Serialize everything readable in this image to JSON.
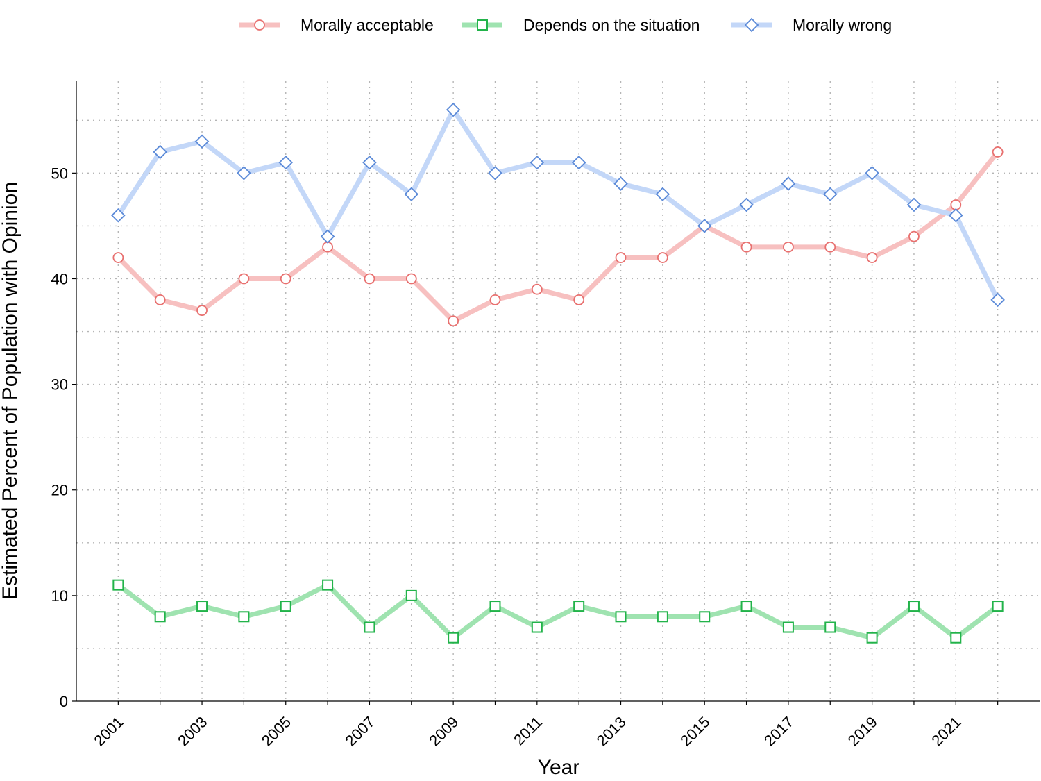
{
  "chart_data": {
    "type": "line",
    "title": "",
    "xlabel": "Year",
    "ylabel": "Estimated Percent of Population with Opinion",
    "x": [
      2001,
      2002,
      2003,
      2004,
      2005,
      2006,
      2007,
      2008,
      2009,
      2010,
      2011,
      2012,
      2013,
      2014,
      2015,
      2016,
      2017,
      2018,
      2019,
      2020,
      2021,
      2022
    ],
    "x_tick_labels": [
      "2001",
      "2003",
      "2005",
      "2007",
      "2009",
      "2011",
      "2013",
      "2015",
      "2017",
      "2019",
      "2021"
    ],
    "y_tick_labels": [
      "0",
      "10",
      "20",
      "30",
      "40",
      "50"
    ],
    "xlim": [
      2000.0,
      2023.0
    ],
    "ylim": [
      0,
      58.7
    ],
    "grid": true,
    "legend_position": "top-center",
    "series": [
      {
        "name": "Morally acceptable",
        "marker": "circle",
        "line_color": "#f7c0c0",
        "marker_color": "#e8706f",
        "values": [
          42,
          38,
          37,
          40,
          40,
          43,
          40,
          40,
          36,
          38,
          39,
          38,
          42,
          42,
          45,
          43,
          43,
          43,
          42,
          44,
          47,
          52
        ]
      },
      {
        "name": "Depends on the situation",
        "marker": "square",
        "line_color": "#9fe3b0",
        "marker_color": "#22b34a",
        "values": [
          11,
          8,
          9,
          8,
          9,
          11,
          7,
          10,
          6,
          9,
          7,
          9,
          8,
          8,
          8,
          9,
          7,
          7,
          6,
          9,
          6,
          9
        ]
      },
      {
        "name": "Morally wrong",
        "marker": "diamond",
        "line_color": "#c3d7f8",
        "marker_color": "#5b8ad8",
        "values": [
          46,
          52,
          53,
          50,
          51,
          44,
          51,
          48,
          56,
          50,
          51,
          51,
          49,
          48,
          45,
          47,
          49,
          48,
          50,
          47,
          46,
          38
        ]
      }
    ]
  }
}
